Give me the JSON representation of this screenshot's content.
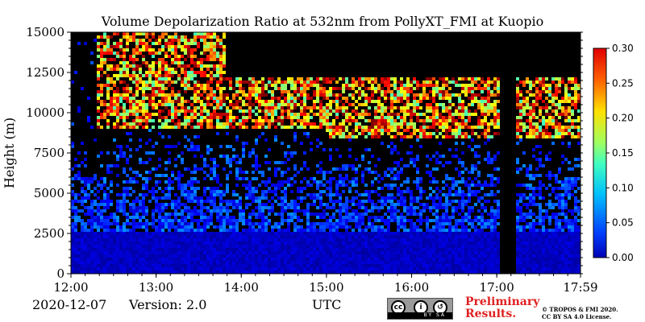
{
  "chart_data": {
    "type": "heatmap",
    "title": "Volume Depolarization Ratio at 532nm from PollyXT_FMI at Kuopio",
    "ylabel": "Height (m)",
    "xlabel": "UTC",
    "x_ticks": [
      "12:00",
      "13:00",
      "14:00",
      "15:00",
      "16:00",
      "17:00",
      "17:59"
    ],
    "x_tick_hours": [
      12.0,
      13.0,
      14.0,
      15.0,
      16.0,
      17.0,
      17.983
    ],
    "xlim_hours": [
      12.0,
      17.983
    ],
    "y_ticks": [
      0,
      2500,
      5000,
      7500,
      10000,
      12500,
      15000
    ],
    "ylim": [
      0,
      15000
    ],
    "colorbar": {
      "ticks": [
        "0.00",
        "0.05",
        "0.10",
        "0.15",
        "0.20",
        "0.25",
        "0.30"
      ],
      "tick_values": [
        0.0,
        0.05,
        0.1,
        0.15,
        0.2,
        0.25,
        0.3
      ],
      "range": [
        0.0,
        0.3
      ],
      "colormap": "jet"
    },
    "features": [
      {
        "kind": "low-depolarization aerosol layer",
        "x_hours": [
          12.0,
          17.983
        ],
        "height_m": [
          0,
          2500
        ],
        "value": 0.02
      },
      {
        "kind": "cirrus cloud layer",
        "x_hours": [
          12.3,
          17.983
        ],
        "height_m": [
          8500,
          12500
        ],
        "value": 0.22
      },
      {
        "kind": "missing data (black)",
        "x_hours": [
          17.05,
          17.22
        ],
        "height_m": [
          0,
          12300
        ]
      },
      {
        "kind": "no signal above cloud (black)",
        "x_hours": [
          13.8,
          17.983
        ],
        "height_m": [
          12300,
          15000
        ]
      }
    ]
  },
  "footer": {
    "date": "2020-12-07",
    "version": "Version: 2.0",
    "preliminary_line1": "Preliminary",
    "preliminary_line2": "Results.",
    "copyright_line1": "© TROPOS & FMI 2020.",
    "copyright_line2": "CC BY SA 4.0 License.",
    "license_badge": "BY SA"
  }
}
